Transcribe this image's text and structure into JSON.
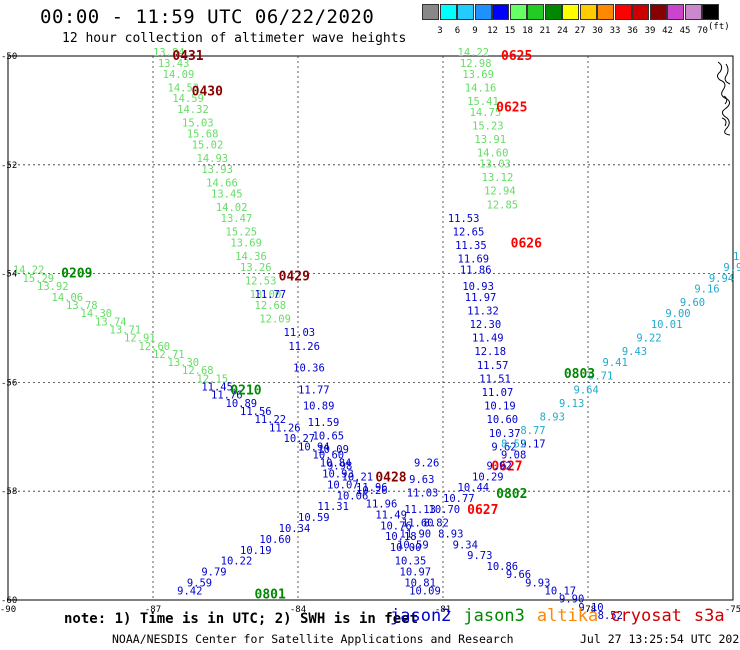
{
  "header": {
    "title": "00:00 - 11:59 UTC 06/22/2020",
    "subtitle": "12 hour collection of altimeter wave heights"
  },
  "legend": {
    "bins": [
      {
        "label": "",
        "color": "#888888"
      },
      {
        "label": "3",
        "color": "#00ffff"
      },
      {
        "label": "6",
        "color": "#22ccff"
      },
      {
        "label": "9",
        "color": "#1e90ff"
      },
      {
        "label": "12",
        "color": "#0000ff"
      },
      {
        "label": "15",
        "color": "#66ff66"
      },
      {
        "label": "18",
        "color": "#22cc22"
      },
      {
        "label": "21",
        "color": "#008800"
      },
      {
        "label": "24",
        "color": "#ffff00"
      },
      {
        "label": "27",
        "color": "#ffcc00"
      },
      {
        "label": "30",
        "color": "#ff8800"
      },
      {
        "label": "33",
        "color": "#ff0000"
      },
      {
        "label": "36",
        "color": "#cc0000"
      },
      {
        "label": "39",
        "color": "#880000"
      },
      {
        "label": "42",
        "color": "#cc44cc"
      },
      {
        "label": "45",
        "color": "#cc88cc"
      },
      {
        "label": "70",
        "color": "#000000"
      }
    ],
    "unit": "(ft)"
  },
  "map": {
    "lon_range": [
      -90,
      -75
    ],
    "lat_range": [
      -60,
      -50
    ],
    "lon_ticks": [
      "-90",
      "-87",
      "-84",
      "-81",
      "-78",
      "-75"
    ],
    "lat_ticks": [
      "-50",
      "-52",
      "-54",
      "-56",
      "-58",
      "-60"
    ],
    "grid_lons": [
      -87,
      -84,
      -81,
      -78
    ],
    "grid_lats": [
      -52,
      -54,
      -56,
      -58
    ]
  },
  "colors": {
    "cryosat": "#cc0000",
    "cryosat_dark": "#880000",
    "jason2": "#0000cc",
    "jason3": "#008800",
    "altika": "#ff8800",
    "s3a": "#cc0000"
  },
  "tracks": [
    {
      "satellite": "cryosat",
      "time": "0431",
      "time_color": "#880000",
      "time_lon": -86.6,
      "time_lat": -50.0,
      "color": "#66dd66",
      "points": [
        [
          -87.0,
          -50.0,
          "13.84"
        ],
        [
          -86.9,
          -50.2,
          "13.43"
        ],
        [
          -86.8,
          -50.4,
          "14.09"
        ],
        [
          -86.7,
          -50.65,
          "14.53"
        ],
        [
          -86.6,
          -50.85,
          "14.59"
        ],
        [
          -86.5,
          -51.05,
          "14.32"
        ],
        [
          -86.4,
          -51.3,
          "15.03"
        ],
        [
          -86.3,
          -51.5,
          "15.68"
        ],
        [
          -86.2,
          -51.7,
          "15.02"
        ],
        [
          -86.1,
          -51.95,
          "14.93"
        ],
        [
          -86.0,
          -52.15,
          "13.93"
        ],
        [
          -85.9,
          -52.4,
          "14.66"
        ],
        [
          -85.8,
          -52.6,
          "13.45"
        ],
        [
          -85.7,
          -52.85,
          "14.02"
        ],
        [
          -85.6,
          -53.05,
          "13.47"
        ],
        [
          -85.5,
          -53.3,
          "15.25"
        ],
        [
          -85.4,
          -53.5,
          "13.69"
        ],
        [
          -85.3,
          -53.75,
          "14.36"
        ],
        [
          -85.2,
          -53.95,
          "13.26"
        ],
        [
          -85.1,
          -54.2,
          "12.53"
        ],
        [
          -85.0,
          -54.45,
          "13.00"
        ],
        [
          -84.9,
          -54.65,
          "12.68"
        ],
        [
          -84.8,
          -54.9,
          "12.09"
        ]
      ]
    },
    {
      "satellite": "cryosat",
      "time": "0430",
      "time_color": "#880000",
      "time_lon": -86.2,
      "time_lat": -50.65,
      "color": "#66dd66",
      "points": []
    },
    {
      "satellite": "cryosat",
      "time": "0429",
      "time_color": "#880000",
      "time_lon": -84.4,
      "time_lat": -54.05,
      "color": "#0000cc",
      "points": [
        [
          -84.9,
          -54.45,
          "11.77"
        ],
        [
          -84.3,
          -55.15,
          "11.03"
        ],
        [
          -84.2,
          -55.4,
          "11.26"
        ],
        [
          -84.1,
          -55.8,
          "10.36"
        ],
        [
          -84.0,
          -56.2,
          "11.77"
        ],
        [
          -83.9,
          -56.5,
          "10.89"
        ],
        [
          -83.8,
          -56.8,
          "11.59"
        ],
        [
          -83.7,
          -57.05,
          "10.65"
        ],
        [
          -83.6,
          -57.3,
          "10.09"
        ],
        [
          -83.55,
          -57.55,
          "10.84"
        ],
        [
          -83.5,
          -57.75,
          "10.93"
        ],
        [
          -83.4,
          -57.95,
          "10.07"
        ]
      ]
    },
    {
      "satellite": "cryosat",
      "time": "0428",
      "time_color": "#880000",
      "time_lon": -82.4,
      "time_lat": -57.75,
      "color": "#0000cc",
      "points": [
        [
          -82.8,
          -58.05,
          "10.26"
        ],
        [
          -82.6,
          -58.3,
          "11.96"
        ],
        [
          -82.4,
          -58.5,
          "11.49"
        ],
        [
          -82.3,
          -58.7,
          "10.76"
        ],
        [
          -82.2,
          -58.9,
          "10.18"
        ],
        [
          -82.1,
          -59.1,
          "10.00"
        ],
        [
          -82.0,
          -59.35,
          "10.35"
        ],
        [
          -81.9,
          -59.55,
          "10.97"
        ],
        [
          -81.8,
          -59.75,
          "10.81"
        ],
        [
          -81.7,
          -59.9,
          "10.09"
        ]
      ]
    },
    {
      "satellite": "jason3",
      "time": "0209",
      "time_color": "#008800",
      "time_lon": -88.9,
      "time_lat": -54.0,
      "color": "#66dd66",
      "points": [
        [
          -89.9,
          -54.0,
          "14.22"
        ],
        [
          -89.7,
          -54.15,
          "15.29"
        ],
        [
          -89.4,
          -54.3,
          "13.92"
        ],
        [
          -89.1,
          -54.5,
          "14.06"
        ],
        [
          -88.8,
          -54.65,
          "13.78"
        ],
        [
          -88.5,
          -54.8,
          "14.30"
        ],
        [
          -88.2,
          -54.95,
          "13.74"
        ],
        [
          -87.9,
          -55.1,
          "13.71"
        ],
        [
          -87.6,
          -55.25,
          "12.91"
        ],
        [
          -87.3,
          -55.4,
          "12.60"
        ],
        [
          -87.0,
          -55.55,
          "12.71"
        ],
        [
          -86.7,
          -55.7,
          "13.30"
        ],
        [
          -86.4,
          -55.85,
          "12.68"
        ],
        [
          -86.1,
          -56.0,
          "12.15"
        ]
      ]
    },
    {
      "satellite": "jason3",
      "time": "0210",
      "time_color": "#008800",
      "time_lon": -85.4,
      "time_lat": -56.15,
      "color": "#0000cc",
      "points": [
        [
          -86.0,
          -56.15,
          "11.45"
        ],
        [
          -85.8,
          -56.3,
          "11.76"
        ],
        [
          -85.5,
          -56.45,
          "10.89"
        ],
        [
          -85.2,
          -56.6,
          "11.56"
        ],
        [
          -84.9,
          -56.75,
          "11.22"
        ],
        [
          -84.6,
          -56.9,
          "11.26"
        ],
        [
          -84.3,
          -57.1,
          "10.27"
        ],
        [
          -84.0,
          -57.25,
          "10.94"
        ],
        [
          -83.7,
          -57.4,
          "10.60"
        ],
        [
          -83.4,
          -57.6,
          "9.98"
        ],
        [
          -83.1,
          -57.8,
          "10.21"
        ],
        [
          -82.8,
          -58.0,
          "11.96"
        ]
      ]
    },
    {
      "satellite": "jason3",
      "time": "0801",
      "time_color": "#008800",
      "time_lon": -84.9,
      "time_lat": -59.9,
      "color": "#0000cc",
      "points": [
        [
          -86.5,
          -59.9,
          "9.42"
        ],
        [
          -86.3,
          -59.75,
          "9.59"
        ],
        [
          -86.0,
          -59.55,
          "9.79"
        ],
        [
          -85.6,
          -59.35,
          "10.22"
        ],
        [
          -85.2,
          -59.15,
          "10.19"
        ],
        [
          -84.8,
          -58.95,
          "10.60"
        ],
        [
          -84.4,
          -58.75,
          "10.34"
        ],
        [
          -84.0,
          -58.55,
          "10.59"
        ],
        [
          -83.6,
          -58.35,
          "11.31"
        ],
        [
          -83.2,
          -58.15,
          "10.06"
        ]
      ]
    },
    {
      "satellite": "cryosat",
      "time": "0625",
      "time_color": "#ff0000",
      "time_lon": -79.8,
      "time_lat": -50.0,
      "color": "#66dd66",
      "points": [
        [
          -80.7,
          -50.0,
          "14.22"
        ],
        [
          -80.65,
          -50.2,
          "12.98"
        ],
        [
          -80.6,
          -50.4,
          "13.69"
        ],
        [
          -80.55,
          -50.65,
          "14.16"
        ],
        [
          -80.5,
          -50.9,
          "15.41"
        ],
        [
          -80.45,
          -51.1,
          "14.75"
        ],
        [
          -80.4,
          -51.35,
          "15.23"
        ],
        [
          -80.35,
          -51.6,
          "13.91"
        ],
        [
          -80.3,
          -51.85,
          "14.60"
        ],
        [
          -80.25,
          -52.05,
          "13.03"
        ],
        [
          -80.2,
          -52.3,
          "13.12"
        ],
        [
          -80.15,
          -52.55,
          "12.94"
        ],
        [
          -80.1,
          -52.8,
          "12.85"
        ]
      ]
    },
    {
      "satellite": "cryosat",
      "time": "0625",
      "time_color": "#ff0000",
      "time_lon": -79.9,
      "time_lat": -50.95,
      "color": "#008800",
      "points": []
    },
    {
      "satellite": "cryosat",
      "time": "0626",
      "time_color": "#ff0000",
      "time_lon": -79.6,
      "time_lat": -53.45,
      "color": "#0000cc",
      "points": [
        [
          -80.9,
          -53.05,
          "11.53"
        ],
        [
          -80.8,
          -53.3,
          "12.65"
        ],
        [
          -80.75,
          -53.55,
          "11.35"
        ],
        [
          -80.7,
          -53.8,
          "11.69"
        ],
        [
          -80.65,
          -54.0,
          "11.86"
        ],
        [
          -80.6,
          -54.3,
          "10.93"
        ],
        [
          -80.55,
          -54.5,
          "11.97"
        ],
        [
          -80.5,
          -54.75,
          "11.32"
        ],
        [
          -80.45,
          -55.0,
          "12.30"
        ],
        [
          -80.4,
          -55.25,
          "11.49"
        ],
        [
          -80.35,
          -55.5,
          "12.18"
        ],
        [
          -80.3,
          -55.75,
          "11.57"
        ],
        [
          -80.25,
          -56.0,
          "11.51"
        ],
        [
          -80.2,
          -56.25,
          "11.07"
        ],
        [
          -80.15,
          -56.5,
          "10.19"
        ],
        [
          -80.1,
          -56.75,
          "10.60"
        ],
        [
          -80.05,
          -57.0,
          "10.37"
        ],
        [
          -80.0,
          -57.25,
          "9.62"
        ]
      ]
    },
    {
      "satellite": "cryosat",
      "time": "0627",
      "time_color": "#ff0000",
      "time_lon": -80.0,
      "time_lat": -57.55,
      "color": "#0000cc",
      "points": [
        [
          -81.6,
          -57.55,
          "9.26"
        ],
        [
          -81.7,
          -57.85,
          "9.63"
        ],
        [
          -81.75,
          -58.1,
          "11.03"
        ],
        [
          -81.8,
          -58.4,
          "11.13"
        ],
        [
          -81.85,
          -58.65,
          "11.60"
        ],
        [
          -81.9,
          -58.85,
          "11.90"
        ],
        [
          -81.95,
          -59.05,
          "10.59"
        ]
      ]
    },
    {
      "satellite": "cryosat",
      "time": "0627",
      "time_color": "#ff0000",
      "time_lon": -80.5,
      "time_lat": -58.35,
      "color": "#0000cc",
      "points": []
    },
    {
      "satellite": "jason3",
      "time": "0802",
      "time_color": "#008800",
      "time_lon": -79.9,
      "time_lat": -58.05,
      "color": "#0000cc",
      "points": [
        [
          -81.3,
          -58.4,
          "10.70"
        ],
        [
          -81.0,
          -58.2,
          "10.77"
        ],
        [
          -80.7,
          -58.0,
          "10.44"
        ],
        [
          -80.4,
          -57.8,
          "10.29"
        ],
        [
          -80.1,
          -57.6,
          "9.92"
        ],
        [
          -79.8,
          -57.4,
          "9.08"
        ],
        [
          -79.4,
          -57.2,
          "9.17"
        ]
      ]
    },
    {
      "satellite": "jason3",
      "time": "0803",
      "time_color": "#008800",
      "time_lon": -78.5,
      "time_lat": -55.85,
      "color": "#22aacc",
      "points": [
        [
          -79.8,
          -57.2,
          "8.52"
        ],
        [
          -79.4,
          -56.95,
          "8.77"
        ],
        [
          -79.0,
          -56.7,
          "8.93"
        ],
        [
          -78.6,
          -56.45,
          "9.13"
        ],
        [
          -78.3,
          -56.2,
          "9.64"
        ],
        [
          -78.0,
          -55.95,
          "9.71"
        ],
        [
          -77.7,
          -55.7,
          "9.41"
        ],
        [
          -77.3,
          -55.5,
          "9.43"
        ],
        [
          -77.0,
          -55.25,
          "9.22"
        ],
        [
          -76.7,
          -55.0,
          "10.01"
        ],
        [
          -76.4,
          -54.8,
          "9.00"
        ],
        [
          -76.1,
          -54.6,
          "9.60"
        ],
        [
          -75.8,
          -54.35,
          "9.16"
        ],
        [
          -75.5,
          -54.15,
          "9.94"
        ],
        [
          -75.2,
          -53.95,
          "9.98"
        ],
        [
          -75.0,
          -53.75,
          "10.18"
        ]
      ]
    },
    {
      "satellite": "jason3",
      "time": "",
      "time_color": "#0000cc",
      "time_lon": -81.0,
      "time_lat": -58.5,
      "color": "#0000cc",
      "points": [
        [
          -81.4,
          -58.65,
          "8.82"
        ],
        [
          -81.1,
          -58.85,
          "8.93"
        ],
        [
          -80.8,
          -59.05,
          "9.34"
        ],
        [
          -80.5,
          -59.25,
          "9.73"
        ],
        [
          -80.1,
          -59.45,
          "10.86"
        ],
        [
          -79.7,
          -59.6,
          "9.66"
        ],
        [
          -79.3,
          -59.75,
          "9.93"
        ],
        [
          -78.9,
          -59.9,
          "10.17"
        ],
        [
          -78.6,
          -60.05,
          "9.90"
        ],
        [
          -78.2,
          -60.2,
          "9.10"
        ],
        [
          -77.8,
          -60.35,
          "8.52"
        ]
      ]
    }
  ],
  "footer": {
    "note": "note: 1) Time is in UTC; 2) SWH is in feet",
    "sat_labels": [
      {
        "name": "jason2",
        "color": "#0000cc"
      },
      {
        "name": "jason3",
        "color": "#008800"
      },
      {
        "name": "altika",
        "color": "#ff8800"
      },
      {
        "name": "cryosat",
        "color": "#cc0000"
      },
      {
        "name": "s3a",
        "color": "#cc0000"
      }
    ],
    "credit": "NOAA/NESDIS Center for Satellite Applications and Research",
    "stamp": "Jul 27 13:25:54 UTC 2020"
  }
}
